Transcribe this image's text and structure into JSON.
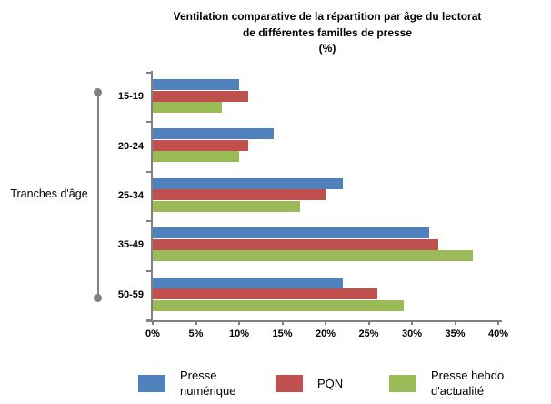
{
  "chart_data": {
    "type": "bar",
    "orientation": "horizontal",
    "title_lines": [
      "Ventilation comparative de la répartition par âge du lectorat",
      "de différentes familles de presse",
      "(%)"
    ],
    "y_axis_title": "Tranches d'âge",
    "categories": [
      "15-19",
      "20-24",
      "25-34",
      "35-49",
      "50-59"
    ],
    "series": [
      {
        "name": "Presse numérique",
        "legend_lines": [
          "Presse",
          "numérique"
        ],
        "color": "#4F81BD",
        "values": [
          10,
          14,
          22,
          32,
          22
        ]
      },
      {
        "name": "PQN",
        "legend_lines": [
          "PQN"
        ],
        "color": "#C0504D",
        "values": [
          11,
          11,
          20,
          33,
          26
        ]
      },
      {
        "name": "Presse hebdo d'actualité",
        "legend_lines": [
          "Presse hebdo",
          "d'actualité"
        ],
        "color": "#9BBB59",
        "values": [
          8,
          10,
          17,
          37,
          29
        ]
      }
    ],
    "x_axis": {
      "min": 0,
      "max": 40,
      "tick_labels": [
        "0%",
        "5%",
        "10%",
        "15%",
        "20%",
        "25%",
        "30%",
        "35%",
        "40%"
      ]
    },
    "legend_position": "bottom",
    "grid": false,
    "axis_color": "#808080"
  }
}
